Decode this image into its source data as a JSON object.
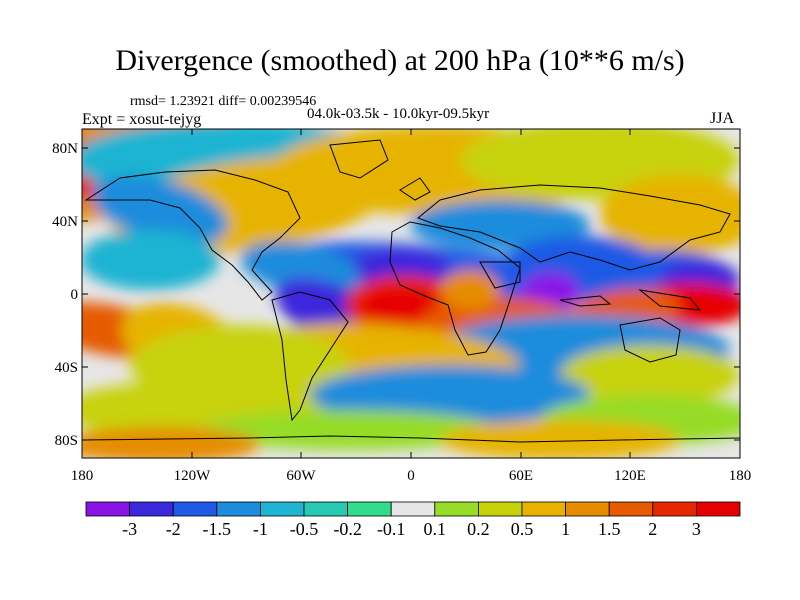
{
  "figure": {
    "title": "Divergence (smoothed) at 200 hPa (10**6 m/s)",
    "stats_line": "rmsd= 1.23921 diff= 0.00239546",
    "experiment_label": "Expt = xosut-tejyg",
    "period_label": "04.0k-03.5k - 10.0kyr-09.5kyr",
    "season_label": "JJA"
  },
  "axes": {
    "y_ticks": [
      "80N",
      "40N",
      "0",
      "40S",
      "80S"
    ],
    "x_ticks": [
      "180",
      "120W",
      "60W",
      "0",
      "60E",
      "120E",
      "180"
    ]
  },
  "colorbar": {
    "labels": [
      "-3",
      "-2",
      "-1.5",
      "-1",
      "-0.5",
      "-0.2",
      "-0.1",
      "0.1",
      "0.2",
      "0.5",
      "1",
      "1.5",
      "2",
      "3"
    ],
    "colors": [
      "#8a14e6",
      "#3c28dc",
      "#1e5ae6",
      "#1e8cdc",
      "#1eb4d2",
      "#28c8b4",
      "#32dc8c",
      "#e6e6e6",
      "#96dc28",
      "#c8d20a",
      "#e6b400",
      "#e68c00",
      "#e65a00",
      "#e62800",
      "#e60000"
    ]
  },
  "colors": {
    "background": "#e6e6e6",
    "coastline": "#000000"
  }
}
